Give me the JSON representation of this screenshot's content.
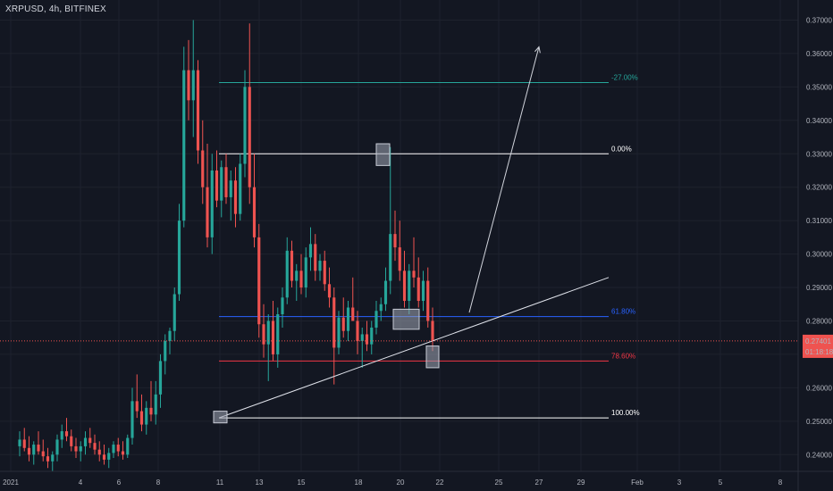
{
  "header": {
    "symbol_line": "XRPUSD, 4h, BITFINEX"
  },
  "colors": {
    "background": "#131722",
    "up": "#26a69a",
    "down": "#ef5350",
    "fib_neg27": "#26a69a",
    "fib_0": "#ffffff",
    "fib_618": "#2962ff",
    "fib_786": "#f23645",
    "fib_100": "#ffffff"
  },
  "price_badge": {
    "price": "0.27401",
    "countdown": "01:18:18"
  },
  "chart_data": {
    "type": "candlestick",
    "title": "",
    "ylim": [
      0.235,
      0.376
    ],
    "y_ticks": [
      "0.24000",
      "0.25000",
      "0.26000",
      "0.27000",
      "0.28000",
      "0.29000",
      "0.30000",
      "0.31000",
      "0.32000",
      "0.33000",
      "0.34000",
      "0.35000",
      "0.36000",
      "0.37000"
    ],
    "x_ticks": [
      "2021",
      "4",
      "6",
      "8",
      "11",
      "13",
      "15",
      "18",
      "20",
      "22",
      "25",
      "27",
      "29",
      "Feb",
      "3",
      "5",
      "8"
    ],
    "grid": true,
    "fib_levels": [
      {
        "label": "-27.00%",
        "price": 0.3513,
        "color_key": "fib_neg27"
      },
      {
        "label": "0.00%",
        "price": 0.33,
        "color_key": "fib_0"
      },
      {
        "label": "61.80%",
        "price": 0.2813,
        "color_key": "fib_618"
      },
      {
        "label": "78.60%",
        "price": 0.268,
        "color_key": "fib_786"
      },
      {
        "label": "100.00%",
        "price": 0.251,
        "color_key": "fib_100"
      }
    ],
    "trendline": {
      "from": {
        "bar": 0,
        "price": 0.251
      },
      "to": {
        "bar": 0,
        "price": 0.293
      }
    },
    "arrow": {
      "from_price": 0.2825,
      "to_price": 0.362
    },
    "highlight_boxes": [
      {
        "top": 0.333,
        "bottom": 0.3265
      },
      {
        "top": 0.2835,
        "bottom": 0.2775
      },
      {
        "top": 0.2725,
        "bottom": 0.266
      },
      {
        "top": 0.253,
        "bottom": 0.2495
      }
    ],
    "candles": [
      [
        0.2425,
        0.247,
        0.2395,
        0.2445
      ],
      [
        0.2445,
        0.248,
        0.241,
        0.242
      ],
      [
        0.242,
        0.2455,
        0.238,
        0.24
      ],
      [
        0.24,
        0.244,
        0.237,
        0.243
      ],
      [
        0.243,
        0.247,
        0.24,
        0.241
      ],
      [
        0.241,
        0.2445,
        0.238,
        0.2395
      ],
      [
        0.2395,
        0.242,
        0.236,
        0.238
      ],
      [
        0.238,
        0.241,
        0.235,
        0.24
      ],
      [
        0.24,
        0.246,
        0.238,
        0.2445
      ],
      [
        0.2445,
        0.249,
        0.242,
        0.247
      ],
      [
        0.247,
        0.251,
        0.244,
        0.2455
      ],
      [
        0.2455,
        0.2475,
        0.241,
        0.2425
      ],
      [
        0.2425,
        0.245,
        0.239,
        0.241
      ],
      [
        0.241,
        0.244,
        0.238,
        0.2425
      ],
      [
        0.2425,
        0.247,
        0.24,
        0.245
      ],
      [
        0.245,
        0.248,
        0.242,
        0.2435
      ],
      [
        0.2435,
        0.246,
        0.24,
        0.2415
      ],
      [
        0.2415,
        0.244,
        0.238,
        0.24
      ],
      [
        0.24,
        0.243,
        0.237,
        0.2385
      ],
      [
        0.2385,
        0.242,
        0.236,
        0.2405
      ],
      [
        0.2405,
        0.244,
        0.239,
        0.243
      ],
      [
        0.243,
        0.245,
        0.2395,
        0.241
      ],
      [
        0.241,
        0.244,
        0.2385,
        0.24
      ],
      [
        0.24,
        0.246,
        0.239,
        0.245
      ],
      [
        0.245,
        0.26,
        0.243,
        0.256
      ],
      [
        0.256,
        0.264,
        0.251,
        0.253
      ],
      [
        0.253,
        0.258,
        0.247,
        0.249
      ],
      [
        0.249,
        0.256,
        0.246,
        0.254
      ],
      [
        0.254,
        0.262,
        0.25,
        0.252
      ],
      [
        0.252,
        0.262,
        0.249,
        0.258
      ],
      [
        0.258,
        0.27,
        0.254,
        0.268
      ],
      [
        0.268,
        0.276,
        0.264,
        0.274
      ],
      [
        0.274,
        0.278,
        0.27,
        0.277
      ],
      [
        0.277,
        0.29,
        0.274,
        0.288
      ],
      [
        0.288,
        0.315,
        0.286,
        0.31
      ],
      [
        0.31,
        0.362,
        0.308,
        0.355
      ],
      [
        0.355,
        0.364,
        0.34,
        0.346
      ],
      [
        0.346,
        0.37,
        0.335,
        0.355
      ],
      [
        0.355,
        0.358,
        0.327,
        0.331
      ],
      [
        0.331,
        0.34,
        0.315,
        0.32
      ],
      [
        0.32,
        0.333,
        0.302,
        0.305
      ],
      [
        0.305,
        0.33,
        0.3,
        0.325
      ],
      [
        0.325,
        0.331,
        0.314,
        0.316
      ],
      [
        0.316,
        0.328,
        0.311,
        0.326
      ],
      [
        0.326,
        0.33,
        0.315,
        0.317
      ],
      [
        0.317,
        0.325,
        0.31,
        0.322
      ],
      [
        0.322,
        0.326,
        0.308,
        0.312
      ],
      [
        0.312,
        0.33,
        0.31,
        0.327
      ],
      [
        0.327,
        0.355,
        0.323,
        0.35
      ],
      [
        0.35,
        0.369,
        0.315,
        0.32
      ],
      [
        0.32,
        0.33,
        0.302,
        0.305
      ],
      [
        0.305,
        0.309,
        0.275,
        0.279
      ],
      [
        0.279,
        0.285,
        0.269,
        0.273
      ],
      [
        0.273,
        0.282,
        0.262,
        0.28
      ],
      [
        0.28,
        0.286,
        0.268,
        0.27
      ],
      [
        0.27,
        0.284,
        0.266,
        0.282
      ],
      [
        0.282,
        0.29,
        0.278,
        0.287
      ],
      [
        0.287,
        0.305,
        0.285,
        0.301
      ],
      [
        0.301,
        0.304,
        0.29,
        0.292
      ],
      [
        0.292,
        0.297,
        0.286,
        0.295
      ],
      [
        0.295,
        0.3,
        0.288,
        0.29
      ],
      [
        0.29,
        0.302,
        0.287,
        0.299
      ],
      [
        0.299,
        0.308,
        0.295,
        0.303
      ],
      [
        0.303,
        0.306,
        0.292,
        0.295
      ],
      [
        0.295,
        0.3,
        0.292,
        0.298
      ],
      [
        0.298,
        0.301,
        0.289,
        0.291
      ],
      [
        0.291,
        0.296,
        0.284,
        0.287
      ],
      [
        0.287,
        0.29,
        0.261,
        0.272
      ],
      [
        0.272,
        0.283,
        0.27,
        0.281
      ],
      [
        0.281,
        0.287,
        0.275,
        0.277
      ],
      [
        0.277,
        0.286,
        0.274,
        0.284
      ],
      [
        0.284,
        0.293,
        0.28,
        0.28
      ],
      [
        0.28,
        0.283,
        0.27,
        0.274
      ],
      [
        0.274,
        0.278,
        0.266,
        0.276
      ],
      [
        0.276,
        0.28,
        0.271,
        0.273
      ],
      [
        0.273,
        0.28,
        0.27,
        0.278
      ],
      [
        0.278,
        0.286,
        0.276,
        0.283
      ],
      [
        0.283,
        0.287,
        0.28,
        0.285
      ],
      [
        0.285,
        0.296,
        0.283,
        0.292
      ],
      [
        0.292,
        0.332,
        0.288,
        0.306
      ],
      [
        0.306,
        0.313,
        0.298,
        0.302
      ],
      [
        0.302,
        0.31,
        0.292,
        0.295
      ],
      [
        0.295,
        0.301,
        0.284,
        0.286
      ],
      [
        0.286,
        0.297,
        0.282,
        0.295
      ],
      [
        0.295,
        0.305,
        0.29,
        0.293
      ],
      [
        0.293,
        0.299,
        0.284,
        0.286
      ],
      [
        0.286,
        0.295,
        0.283,
        0.292
      ],
      [
        0.292,
        0.296,
        0.278,
        0.28
      ],
      [
        0.28,
        0.284,
        0.271,
        0.274
      ]
    ]
  }
}
